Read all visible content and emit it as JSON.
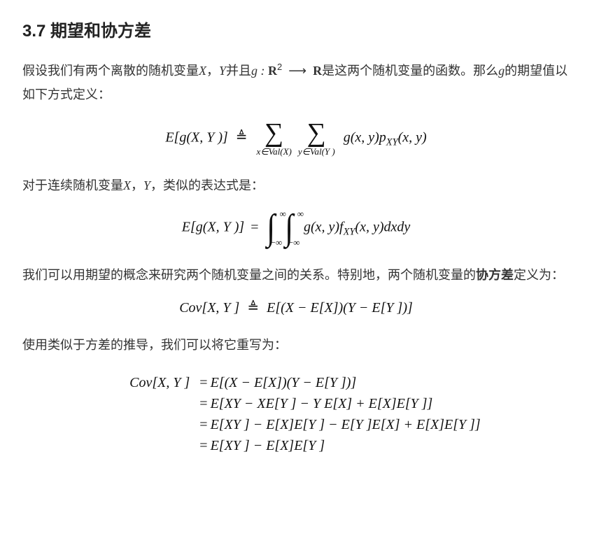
{
  "heading": "3.7 期望和协方差",
  "para1_a": "假设我们有两个离散的随机变量",
  "para1_b": "，",
  "para1_c": "并且",
  "para1_d": "是这两个随机变量的函数。那么",
  "para1_e": "的期望值以如下方式定义：",
  "sym": {
    "X": "X",
    "Y": "Y",
    "g": "g",
    "gmap_pre": "g : ",
    "R": "R",
    "two": "2",
    "arrow": "⟶",
    "E_open": "E[g(X, Y )]",
    "defeq": "≜",
    "eq": "=",
    "sum": "∑",
    "xinVal": "x∈Val(X)",
    "yinVal": "y∈Val(Y )",
    "gxy": "g(x, y)p",
    "XY": "XY",
    "pxy_tail": "(x, y)",
    "int": "∫",
    "inf": "∞",
    "ninf": "−∞",
    "fxy_mid": "g(x, y)f",
    "fxy_tail": "(x, y)dxdy",
    "Cov_open": "Cov[X, Y ]",
    "cov_rhs": "E[(X − E[X])(Y − E[Y ])]",
    "a2": "E[XY − XE[Y ] − Y E[X] + E[X]E[Y ]]",
    "a3": "E[XY ] − E[X]E[Y ] − E[Y ]E[X] + E[X]E[Y ]]",
    "a4": "E[XY ] − E[X]E[Y ]"
  },
  "para2_a": "对于连续随机变量",
  "para2_b": "，",
  "para2_c": "，类似的表达式是：",
  "para3_a": "我们可以用期望的概念来研究两个随机变量之间的关系。特别地，两个随机变量的",
  "para3_term": "协方差",
  "para3_b": "定义为：",
  "para4": "使用类似于方差的推导，我们可以将它重写为："
}
